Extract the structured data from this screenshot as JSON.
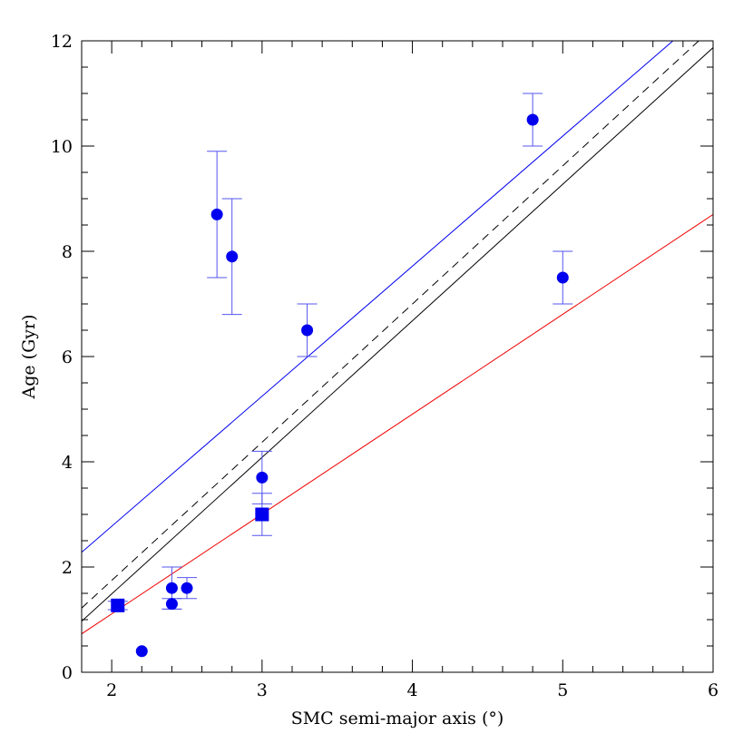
{
  "chart_data": {
    "type": "scatter",
    "xlabel": "SMC semi-major axis (°)",
    "ylabel": "Age (Gyr)",
    "xlim": [
      1.8,
      6.0
    ],
    "ylim": [
      0,
      12
    ],
    "x_ticks_major": [
      2,
      3,
      4,
      5,
      6
    ],
    "y_ticks_major": [
      0,
      2,
      4,
      6,
      8,
      10,
      12
    ],
    "x_tick_labels": [
      "2",
      "3",
      "4",
      "5",
      "6"
    ],
    "y_tick_labels": [
      "0",
      "2",
      "4",
      "6",
      "8",
      "10",
      "12"
    ],
    "grid": false,
    "legend": "none",
    "series": [
      {
        "marker": "circle",
        "color": "#0000ee",
        "errorbar_color": "#5555ee",
        "points": [
          {
            "x": 2.2,
            "y": 0.4,
            "err_lo": 0,
            "err_hi": 0
          },
          {
            "x": 2.4,
            "y": 1.3,
            "err_lo": 0.1,
            "err_hi": 0.1
          },
          {
            "x": 2.4,
            "y": 1.6,
            "err_lo": 0.4,
            "err_hi": 0.4
          },
          {
            "x": 2.5,
            "y": 1.6,
            "err_lo": 0.2,
            "err_hi": 0.2
          },
          {
            "x": 2.7,
            "y": 8.7,
            "err_lo": 1.2,
            "err_hi": 1.2
          },
          {
            "x": 2.8,
            "y": 7.9,
            "err_lo": 1.1,
            "err_hi": 1.1
          },
          {
            "x": 3.0,
            "y": 3.7,
            "err_lo": 0.5,
            "err_hi": 0.5
          },
          {
            "x": 3.3,
            "y": 6.5,
            "err_lo": 0.5,
            "err_hi": 0.5
          },
          {
            "x": 4.8,
            "y": 10.5,
            "err_lo": 0.5,
            "err_hi": 0.5
          },
          {
            "x": 5.0,
            "y": 7.5,
            "err_lo": 0.5,
            "err_hi": 0.5
          }
        ]
      },
      {
        "marker": "square",
        "color": "#0000ee",
        "errorbar_color": "#5555ee",
        "points": [
          {
            "x": 2.04,
            "y": 1.27,
            "err_lo": 0.08,
            "err_hi": 0.08
          },
          {
            "x": 3.0,
            "y": 3.0,
            "err_lo": 0.4,
            "err_hi": 0.4
          }
        ]
      }
    ],
    "lines": [
      {
        "style": "solid",
        "color": "#0000ee",
        "x": [
          1.8,
          6.0
        ],
        "y": [
          2.28,
          12.66
        ]
      },
      {
        "style": "dashed",
        "color": "#000000",
        "x": [
          1.8,
          6.0
        ],
        "y": [
          1.22,
          12.25
        ]
      },
      {
        "style": "solid",
        "color": "#000000",
        "x": [
          1.8,
          6.0
        ],
        "y": [
          0.97,
          11.87
        ]
      },
      {
        "style": "solid",
        "color": "#ee0000",
        "x": [
          1.8,
          6.0
        ],
        "y": [
          0.73,
          8.7
        ]
      }
    ]
  }
}
